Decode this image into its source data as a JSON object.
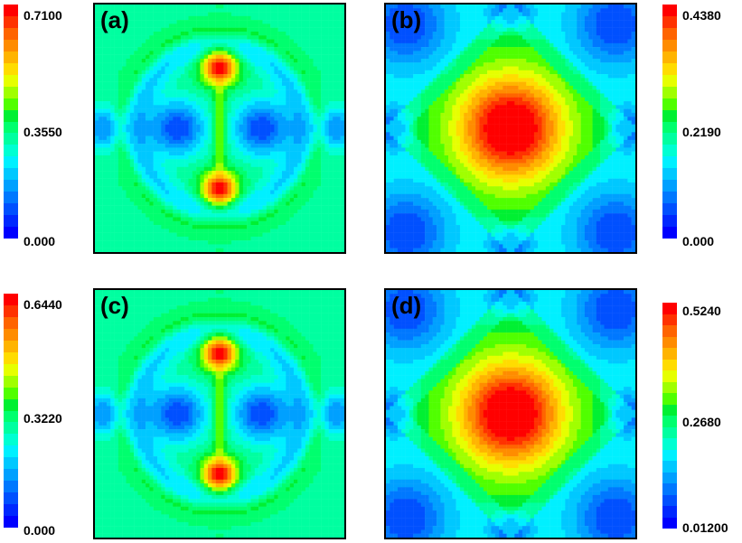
{
  "colormap": [
    "#0000ff",
    "#0028ff",
    "#0050ff",
    "#0078ff",
    "#00a0ff",
    "#00c8ff",
    "#00f0ff",
    "#00ffd2",
    "#00ffa0",
    "#00ff6e",
    "#00f032",
    "#50ff00",
    "#a0ff00",
    "#e6ff00",
    "#ffdc00",
    "#ffb400",
    "#ff8c00",
    "#ff6400",
    "#ff3200",
    "#ff0000"
  ],
  "chart_data": [
    {
      "type": "heatmap",
      "panel_label": "(a)",
      "colorbar": {
        "ticks": [
          "0.7100",
          "0.3550",
          "0.000"
        ],
        "min": 0.0,
        "max": 0.71
      },
      "features": {
        "peaks": 2,
        "peak_separation": 0.25,
        "center_value": 0.6,
        "lobes": true
      }
    },
    {
      "type": "heatmap",
      "panel_label": "(b)",
      "colorbar": {
        "ticks": [
          "0.4380",
          "0.2190",
          "0.000"
        ],
        "min": 0.0,
        "max": 0.438
      },
      "features": {
        "peaks": 2,
        "peak_separation": 0.0,
        "center_value": 0.95,
        "lobes": false
      }
    },
    {
      "type": "heatmap",
      "panel_label": "(c)",
      "colorbar": {
        "ticks": [
          "0.6440",
          "0.3220",
          "0.000"
        ],
        "min": 0.0,
        "max": 0.644
      },
      "features": {
        "peaks": 2,
        "peak_separation": 0.25,
        "center_value": 0.6,
        "lobes": true
      }
    },
    {
      "type": "heatmap",
      "panel_label": "(d)",
      "colorbar": {
        "ticks": [
          "0.5240",
          "0.2680",
          "0.01200"
        ],
        "min": 0.012,
        "max": 0.524
      },
      "features": {
        "peaks": 2,
        "peak_separation": 0.0,
        "center_value": 0.85,
        "lobes": false
      }
    }
  ]
}
